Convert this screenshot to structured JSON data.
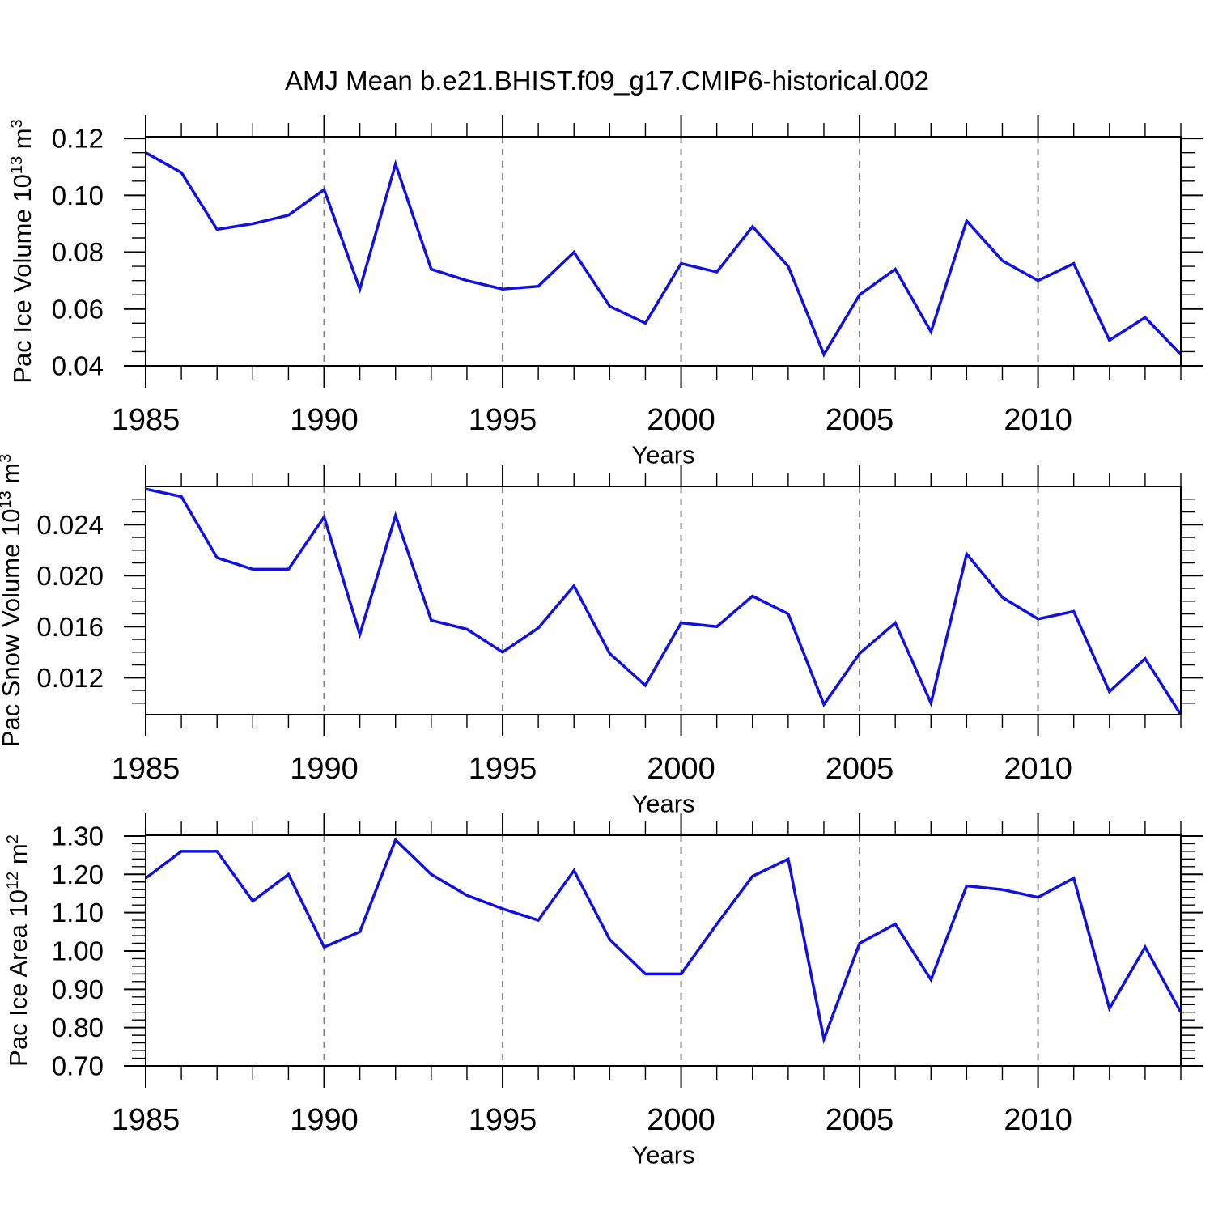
{
  "title": "AMJ Mean b.e21.BHIST.f09_g17.CMIP6-historical.002",
  "x_axis": {
    "label": "Years",
    "year_min": 1985,
    "year_max": 2014,
    "major_tick_years": [
      1985,
      1990,
      1995,
      2000,
      2005,
      2010
    ],
    "tick_labels": [
      "1985",
      "1990",
      "1995",
      "2000",
      "2005",
      "2010"
    ],
    "gridline_years": [
      1990,
      1995,
      2000,
      2005,
      2010
    ]
  },
  "colors": {
    "line": "#1010e0",
    "grid": "#808080",
    "axis": "#000000",
    "background": "#ffffff"
  },
  "years": [
    1985,
    1986,
    1987,
    1988,
    1989,
    1990,
    1991,
    1992,
    1993,
    1994,
    1995,
    1996,
    1997,
    1998,
    1999,
    2000,
    2001,
    2002,
    2003,
    2004,
    2005,
    2006,
    2007,
    2008,
    2009,
    2010,
    2011,
    2012,
    2013,
    2014
  ],
  "chart_data": [
    {
      "type": "line",
      "id": "pac-ice-volume",
      "ylabel": "Pac Ice Volume 10^{13} m^{3}",
      "ylim": [
        0.04,
        0.1206
      ],
      "yticks": {
        "values": [
          0.04,
          0.06,
          0.08,
          0.1,
          0.12
        ],
        "labels": [
          "0.04",
          "0.06",
          "0.08",
          "0.10",
          "0.12"
        ]
      },
      "yminor": {
        "start": 0.045,
        "end": 0.1175,
        "step": 0.005
      },
      "values": [
        0.115,
        0.108,
        0.088,
        0.09,
        0.093,
        0.102,
        0.067,
        0.111,
        0.074,
        0.07,
        0.067,
        0.068,
        0.08,
        0.061,
        0.055,
        0.076,
        0.073,
        0.089,
        0.075,
        0.044,
        0.065,
        0.074,
        0.052,
        0.091,
        0.077,
        0.07,
        0.076,
        0.049,
        0.057,
        0.044
      ]
    },
    {
      "type": "line",
      "id": "pac-snow-volume",
      "ylabel": "Pac Snow Volume 10^{13} m^{3}",
      "ylim": [
        0.0091,
        0.027
      ],
      "yticks": {
        "values": [
          0.012,
          0.016,
          0.02,
          0.024
        ],
        "labels": [
          "0.012",
          "0.016",
          "0.020",
          "0.024"
        ]
      },
      "yminor": {
        "start": 0.01,
        "end": 0.0265,
        "step": 0.001
      },
      "values": [
        0.0268,
        0.0262,
        0.0214,
        0.0205,
        0.0205,
        0.0246,
        0.0154,
        0.0247,
        0.0165,
        0.0158,
        0.014,
        0.0159,
        0.0192,
        0.0139,
        0.0114,
        0.0163,
        0.016,
        0.0184,
        0.017,
        0.0099,
        0.0139,
        0.0163,
        0.01,
        0.0217,
        0.0183,
        0.0166,
        0.0172,
        0.0109,
        0.0135,
        0.0091
      ]
    },
    {
      "type": "line",
      "id": "pac-ice-area",
      "ylabel": "Pac Ice Area 10^{12} m^{2}",
      "ylim": [
        0.7,
        1.302
      ],
      "yticks": {
        "values": [
          0.7,
          0.8,
          0.9,
          1.0,
          1.1,
          1.2,
          1.3
        ],
        "labels": [
          "0.70",
          "0.80",
          "0.90",
          "1.00",
          "1.10",
          "1.20",
          "1.30"
        ]
      },
      "yminor": {
        "start": 0.72,
        "end": 1.295,
        "step": 0.02
      },
      "values": [
        1.19,
        1.26,
        1.26,
        1.13,
        1.2,
        1.01,
        1.05,
        1.29,
        1.2,
        1.145,
        1.11,
        1.08,
        1.21,
        1.03,
        0.94,
        0.94,
        1.07,
        1.195,
        1.24,
        0.77,
        1.02,
        1.07,
        0.925,
        1.17,
        1.16,
        1.14,
        1.19,
        0.85,
        1.01,
        0.84
      ]
    }
  ]
}
